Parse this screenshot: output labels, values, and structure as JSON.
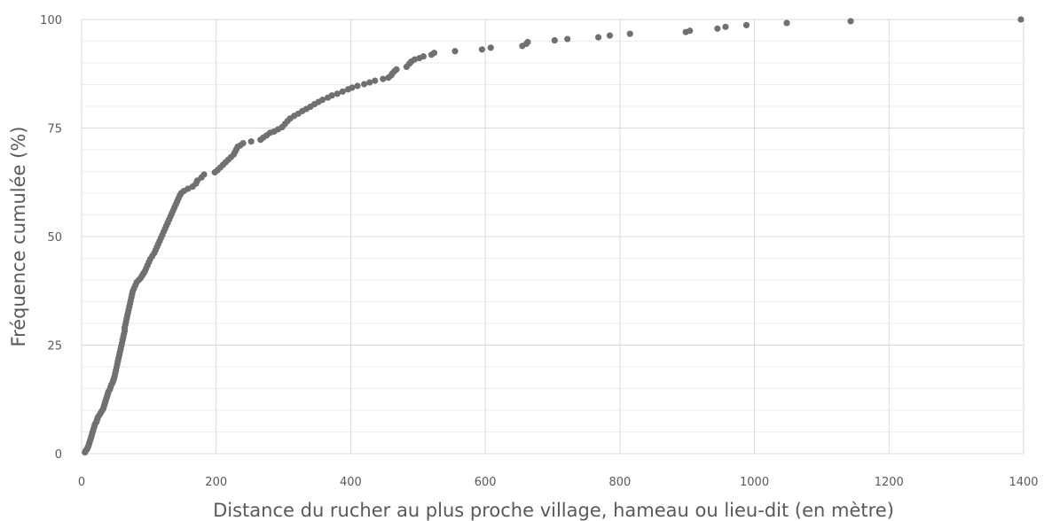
{
  "chart_data": {
    "type": "scatter",
    "title": "",
    "xlabel": "Distance du rucher au plus proche village, hameau ou lieu-dit (en mètre)",
    "ylabel": "Fréquence cumulée (%)",
    "xlim": [
      0,
      1400
    ],
    "ylim": [
      0,
      100
    ],
    "x_ticks": [
      "0",
      "200",
      "400",
      "600",
      "800",
      "1000",
      "1200",
      "1400"
    ],
    "y_ticks": [
      "0",
      "25",
      "50",
      "75",
      "100"
    ],
    "grid": {
      "major": true,
      "minor_horizontal": true
    },
    "point_color": "#707070",
    "gridline_color": "#d9d9d9",
    "minor_gridline_color": "#ededed",
    "series": [
      {
        "points": [
          [
            5,
            0.3
          ],
          [
            6,
            0.7
          ],
          [
            8,
            1.0
          ],
          [
            9,
            1.4
          ],
          [
            10,
            1.7
          ],
          [
            11,
            2.2
          ],
          [
            12,
            2.7
          ],
          [
            13,
            3.2
          ],
          [
            14,
            3.7
          ],
          [
            15,
            4.2
          ],
          [
            16,
            4.8
          ],
          [
            17,
            5.3
          ],
          [
            18,
            5.8
          ],
          [
            19,
            6.3
          ],
          [
            20,
            6.8
          ],
          [
            22,
            7.3
          ],
          [
            23,
            7.8
          ],
          [
            24,
            8.3
          ],
          [
            26,
            8.8
          ],
          [
            28,
            9.3
          ],
          [
            30,
            9.8
          ],
          [
            32,
            10.3
          ],
          [
            33,
            10.8
          ],
          [
            34,
            11.3
          ],
          [
            35,
            11.8
          ],
          [
            36,
            12.3
          ],
          [
            37,
            12.8
          ],
          [
            38,
            13.3
          ],
          [
            39,
            13.8
          ],
          [
            40,
            14.3
          ],
          [
            42,
            14.8
          ],
          [
            43,
            15.3
          ],
          [
            44,
            15.8
          ],
          [
            46,
            16.3
          ],
          [
            47,
            16.8
          ],
          [
            48,
            17.3
          ],
          [
            49,
            17.8
          ],
          [
            50,
            18.5
          ],
          [
            51,
            19.2
          ],
          [
            52,
            19.9
          ],
          [
            53,
            20.6
          ],
          [
            54,
            21.3
          ],
          [
            55,
            22.0
          ],
          [
            56,
            22.7
          ],
          [
            57,
            23.4
          ],
          [
            58,
            24.1
          ],
          [
            59,
            24.8
          ],
          [
            60,
            25.5
          ],
          [
            61,
            26.2
          ],
          [
            62,
            26.9
          ],
          [
            63,
            27.6
          ],
          [
            64,
            28.3
          ],
          [
            64,
            29.0
          ],
          [
            65,
            29.7
          ],
          [
            66,
            30.4
          ],
          [
            67,
            31.1
          ],
          [
            68,
            31.8
          ],
          [
            69,
            32.5
          ],
          [
            70,
            33.2
          ],
          [
            71,
            33.9
          ],
          [
            72,
            34.6
          ],
          [
            73,
            35.3
          ],
          [
            74,
            36.0
          ],
          [
            75,
            36.7
          ],
          [
            76,
            37.4
          ],
          [
            78,
            38.1
          ],
          [
            80,
            38.8
          ],
          [
            82,
            39.5
          ],
          [
            85,
            40.0
          ],
          [
            88,
            40.5
          ],
          [
            90,
            41.0
          ],
          [
            92,
            41.5
          ],
          [
            94,
            42.0
          ],
          [
            96,
            42.7
          ],
          [
            98,
            43.4
          ],
          [
            100,
            44.1
          ],
          [
            102,
            44.8
          ],
          [
            105,
            45.5
          ],
          [
            108,
            46.2
          ],
          [
            110,
            46.9
          ],
          [
            112,
            47.6
          ],
          [
            114,
            48.3
          ],
          [
            116,
            49.0
          ],
          [
            118,
            49.7
          ],
          [
            120,
            50.4
          ],
          [
            122,
            51.1
          ],
          [
            124,
            51.8
          ],
          [
            126,
            52.5
          ],
          [
            128,
            53.2
          ],
          [
            130,
            53.9
          ],
          [
            132,
            54.6
          ],
          [
            134,
            55.3
          ],
          [
            136,
            56.0
          ],
          [
            138,
            56.7
          ],
          [
            140,
            57.4
          ],
          [
            142,
            58.1
          ],
          [
            144,
            58.8
          ],
          [
            146,
            59.5
          ],
          [
            148,
            60.0
          ],
          [
            152,
            60.5
          ],
          [
            158,
            61.0
          ],
          [
            165,
            61.5
          ],
          [
            170,
            62.2
          ],
          [
            172,
            62.9
          ],
          [
            178,
            63.6
          ],
          [
            182,
            64.3
          ],
          [
            198,
            64.8
          ],
          [
            202,
            65.3
          ],
          [
            206,
            65.9
          ],
          [
            210,
            66.5
          ],
          [
            214,
            67.1
          ],
          [
            218,
            67.7
          ],
          [
            222,
            68.3
          ],
          [
            226,
            68.9
          ],
          [
            228,
            69.5
          ],
          [
            230,
            70.1
          ],
          [
            232,
            70.7
          ],
          [
            236,
            71.0
          ],
          [
            240,
            71.5
          ],
          [
            252,
            71.9
          ],
          [
            266,
            72.3
          ],
          [
            270,
            72.8
          ],
          [
            275,
            73.3
          ],
          [
            280,
            73.9
          ],
          [
            286,
            74.2
          ],
          [
            292,
            74.7
          ],
          [
            298,
            75.2
          ],
          [
            302,
            75.9
          ],
          [
            306,
            76.6
          ],
          [
            310,
            77.2
          ],
          [
            316,
            77.8
          ],
          [
            322,
            78.3
          ],
          [
            328,
            78.9
          ],
          [
            334,
            79.4
          ],
          [
            340,
            79.9
          ],
          [
            346,
            80.5
          ],
          [
            352,
            81.0
          ],
          [
            358,
            81.5
          ],
          [
            366,
            82.0
          ],
          [
            372,
            82.5
          ],
          [
            380,
            82.9
          ],
          [
            388,
            83.4
          ],
          [
            396,
            83.9
          ],
          [
            402,
            84.3
          ],
          [
            410,
            84.7
          ],
          [
            420,
            85.1
          ],
          [
            428,
            85.5
          ],
          [
            436,
            85.9
          ],
          [
            448,
            86.3
          ],
          [
            456,
            86.6
          ],
          [
            460,
            87.1
          ],
          [
            462,
            87.6
          ],
          [
            465,
            88.1
          ],
          [
            468,
            88.5
          ],
          [
            483,
            89.1
          ],
          [
            487,
            89.8
          ],
          [
            490,
            90.3
          ],
          [
            495,
            90.8
          ],
          [
            502,
            91.1
          ],
          [
            508,
            91.5
          ],
          [
            520,
            91.9
          ],
          [
            524,
            92.3
          ],
          [
            555,
            92.7
          ],
          [
            595,
            93.1
          ],
          [
            608,
            93.5
          ],
          [
            655,
            93.9
          ],
          [
            661,
            94.4
          ],
          [
            663,
            94.8
          ],
          [
            703,
            95.2
          ],
          [
            722,
            95.5
          ],
          [
            768,
            95.9
          ],
          [
            785,
            96.3
          ],
          [
            815,
            96.7
          ],
          [
            898,
            97.1
          ],
          [
            904,
            97.4
          ],
          [
            945,
            97.9
          ],
          [
            957,
            98.3
          ],
          [
            988,
            98.7
          ],
          [
            1048,
            99.2
          ],
          [
            1143,
            99.6
          ],
          [
            1396,
            100.0
          ]
        ]
      }
    ]
  }
}
